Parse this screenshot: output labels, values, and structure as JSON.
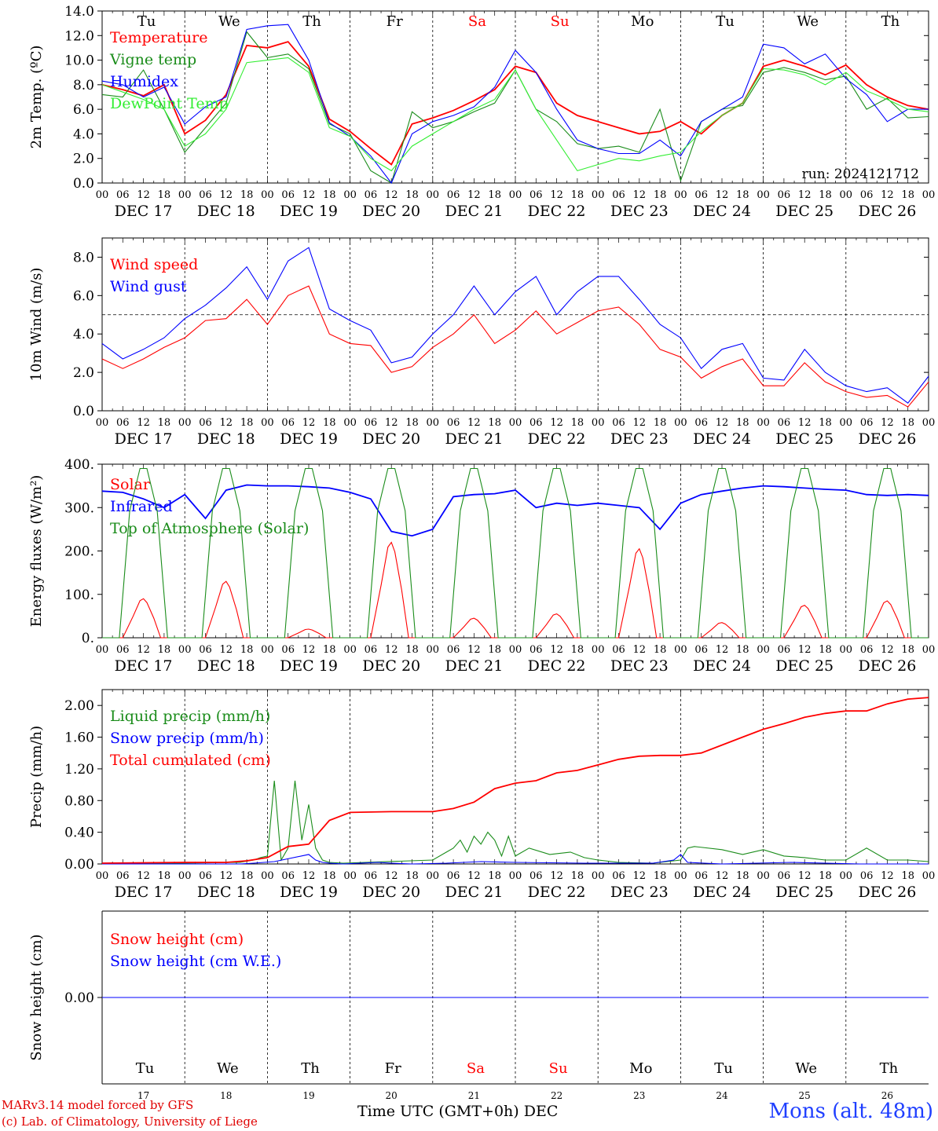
{
  "chart_data": [
    {
      "type": "line",
      "ylabel": "2m Temp. (ºC)",
      "ylim": [
        0,
        14
      ],
      "yticks": [
        "0.0",
        "2.0",
        "4.0",
        "6.0",
        "8.0",
        "10.0",
        "12.0",
        "14.0"
      ],
      "run_label": "run: 2024121712",
      "series": [
        {
          "name": "Temperature",
          "color": "#ff0000",
          "x": [
            0,
            6,
            12,
            18,
            24,
            30,
            36,
            42,
            48,
            54,
            60,
            66,
            72,
            78,
            84,
            90,
            96,
            102,
            108,
            114,
            120,
            126,
            132,
            138,
            144,
            150,
            156,
            162,
            168,
            174,
            180,
            186,
            192,
            198,
            204,
            210,
            216,
            222,
            228,
            234,
            240
          ],
          "values": [
            8.0,
            7.6,
            7.1,
            8.0,
            4.0,
            5.1,
            7.2,
            11.2,
            11.0,
            11.5,
            9.5,
            5.2,
            4.2,
            2.8,
            1.5,
            4.8,
            5.3,
            5.9,
            6.7,
            7.6,
            9.5,
            9.0,
            6.5,
            5.5,
            5.0,
            4.5,
            4.0,
            4.2,
            5.0,
            4.0,
            5.5,
            6.5,
            9.5,
            10.0,
            9.5,
            8.8,
            9.6,
            8.0,
            7.0,
            6.3,
            6.0
          ]
        },
        {
          "name": "Vigne temp",
          "color": "#1a8c1a",
          "x": [
            0,
            6,
            12,
            18,
            24,
            30,
            36,
            42,
            48,
            54,
            60,
            66,
            72,
            78,
            84,
            90,
            96,
            102,
            108,
            114,
            120,
            126,
            132,
            138,
            144,
            150,
            156,
            162,
            168,
            174,
            180,
            186,
            192,
            198,
            204,
            210,
            216,
            222,
            228,
            234,
            240
          ],
          "values": [
            7.2,
            7.0,
            9.2,
            6.0,
            2.5,
            4.5,
            6.5,
            12.3,
            10.2,
            10.5,
            9.3,
            4.8,
            4.0,
            1.0,
            0.0,
            5.8,
            4.5,
            5.0,
            5.8,
            6.5,
            9.2,
            6.0,
            5.0,
            3.2,
            2.8,
            3.0,
            2.5,
            6.0,
            0.2,
            5.0,
            6.0,
            6.3,
            9.0,
            9.4,
            9.0,
            8.4,
            8.7,
            6.0,
            6.9,
            5.3,
            5.4
          ]
        },
        {
          "name": "Humidex",
          "color": "#0000ff",
          "x": [
            0,
            6,
            12,
            18,
            24,
            30,
            36,
            42,
            48,
            54,
            60,
            66,
            72,
            78,
            84,
            90,
            96,
            102,
            108,
            114,
            120,
            126,
            132,
            138,
            144,
            150,
            156,
            162,
            168,
            174,
            180,
            186,
            192,
            198,
            204,
            210,
            216,
            222,
            228,
            234,
            240
          ],
          "values": [
            8.3,
            8.0,
            7.0,
            7.8,
            4.8,
            6.2,
            7.0,
            12.5,
            12.8,
            12.9,
            10.0,
            4.9,
            3.8,
            2.2,
            0.0,
            4.0,
            5.0,
            5.5,
            6.2,
            7.8,
            10.8,
            9.0,
            6.0,
            3.5,
            2.8,
            2.4,
            2.4,
            3.5,
            2.2,
            5.0,
            6.0,
            7.0,
            11.3,
            11.0,
            9.7,
            10.5,
            8.5,
            7.2,
            5.0,
            6.0,
            6.0
          ]
        },
        {
          "name": "DewPoint Temp",
          "color": "#33ee33",
          "x": [
            0,
            6,
            12,
            18,
            24,
            30,
            36,
            42,
            48,
            54,
            60,
            66,
            72,
            78,
            84,
            90,
            96,
            102,
            108,
            114,
            120,
            126,
            132,
            138,
            144,
            150,
            156,
            162,
            168,
            174,
            180,
            186,
            192,
            198,
            204,
            210,
            216,
            222,
            228,
            234,
            240
          ],
          "values": [
            8.0,
            7.4,
            6.8,
            6.0,
            3.0,
            4.0,
            6.0,
            9.8,
            10.0,
            10.2,
            9.0,
            4.5,
            3.8,
            2.0,
            1.0,
            3.0,
            4.0,
            5.0,
            6.0,
            6.8,
            9.2,
            6.0,
            3.5,
            1.0,
            1.5,
            2.0,
            1.8,
            2.2,
            2.5,
            4.2,
            5.5,
            6.5,
            9.3,
            9.2,
            8.8,
            8.0,
            9.0,
            7.5,
            6.8,
            6.0,
            5.8
          ]
        }
      ]
    },
    {
      "type": "line",
      "ylabel": "10m Wind (m/s)",
      "ylim": [
        0,
        9
      ],
      "yticks": [
        "0.0",
        "2.0",
        "4.0",
        "6.0",
        "8.0"
      ],
      "reference_line": 5,
      "series": [
        {
          "name": "Wind speed",
          "color": "#ff0000",
          "x": [
            0,
            6,
            12,
            18,
            24,
            30,
            36,
            42,
            48,
            54,
            60,
            66,
            72,
            78,
            84,
            90,
            96,
            102,
            108,
            114,
            120,
            126,
            132,
            138,
            144,
            150,
            156,
            162,
            168,
            174,
            180,
            186,
            192,
            198,
            204,
            210,
            216,
            222,
            228,
            234,
            240
          ],
          "values": [
            2.7,
            2.2,
            2.7,
            3.3,
            3.8,
            4.7,
            4.8,
            5.8,
            4.5,
            6.0,
            6.5,
            4.0,
            3.5,
            3.4,
            2.0,
            2.3,
            3.3,
            4.0,
            5.0,
            3.5,
            4.2,
            5.2,
            4.0,
            4.6,
            5.2,
            5.4,
            4.5,
            3.2,
            2.8,
            1.7,
            2.3,
            2.7,
            1.3,
            1.3,
            2.5,
            1.5,
            1.0,
            0.7,
            0.8,
            0.2,
            1.5
          ]
        },
        {
          "name": "Wind gust",
          "color": "#0000ff",
          "x": [
            0,
            6,
            12,
            18,
            24,
            30,
            36,
            42,
            48,
            54,
            60,
            66,
            72,
            78,
            84,
            90,
            96,
            102,
            108,
            114,
            120,
            126,
            132,
            138,
            144,
            150,
            156,
            162,
            168,
            174,
            180,
            186,
            192,
            198,
            204,
            210,
            216,
            222,
            228,
            234,
            240
          ],
          "values": [
            3.5,
            2.7,
            3.2,
            3.8,
            4.8,
            5.5,
            6.4,
            7.5,
            5.8,
            7.8,
            8.5,
            5.3,
            4.7,
            4.2,
            2.5,
            2.8,
            4.0,
            5.0,
            6.5,
            5.0,
            6.2,
            7.0,
            5.0,
            6.2,
            7.0,
            7.0,
            5.8,
            4.5,
            3.8,
            2.2,
            3.2,
            3.5,
            1.7,
            1.6,
            3.2,
            2.0,
            1.3,
            1.0,
            1.2,
            0.4,
            1.8
          ]
        }
      ]
    },
    {
      "type": "line",
      "ylabel": "Energy fluxes (W/m²)",
      "ylim": [
        0,
        400
      ],
      "yticks": [
        "0.",
        "100.",
        "200.",
        "300.",
        "400."
      ],
      "series": [
        {
          "name": "Solar",
          "color": "#ff0000",
          "peaks": [
            90,
            130,
            20,
            220,
            45,
            55,
            205,
            35,
            75,
            85
          ]
        },
        {
          "name": "Infrared",
          "color": "#0000ff",
          "x": [
            0,
            6,
            12,
            18,
            24,
            30,
            36,
            42,
            48,
            54,
            60,
            66,
            72,
            78,
            84,
            90,
            96,
            102,
            108,
            114,
            120,
            126,
            132,
            138,
            144,
            150,
            156,
            162,
            168,
            174,
            180,
            186,
            192,
            198,
            204,
            210,
            216,
            222,
            228,
            234,
            240
          ],
          "values": [
            338,
            335,
            320,
            300,
            330,
            275,
            340,
            352,
            350,
            350,
            348,
            345,
            335,
            320,
            245,
            235,
            250,
            325,
            330,
            332,
            340,
            300,
            310,
            305,
            310,
            305,
            300,
            250,
            310,
            330,
            338,
            345,
            350,
            348,
            345,
            342,
            340,
            330,
            328,
            330,
            328
          ]
        },
        {
          "name": "Top of Atmosphere (Solar)",
          "color": "#1a8c1a",
          "peak": 390
        }
      ]
    },
    {
      "type": "line",
      "ylabel": "Precip (mm/h)",
      "ylim": [
        0,
        2.2
      ],
      "yticks": [
        "0.00",
        "0.40",
        "0.80",
        "1.20",
        "1.60",
        "2.00"
      ],
      "series": [
        {
          "name": "Liquid precip (mm/h)",
          "color": "#1a8c1a",
          "x": [
            0,
            24,
            40,
            44,
            46,
            48,
            50,
            52,
            54,
            56,
            58,
            60,
            62,
            64,
            66,
            70,
            96,
            100,
            102,
            104,
            106,
            108,
            110,
            112,
            114,
            116,
            118,
            120,
            124,
            130,
            136,
            140,
            144,
            150,
            160,
            168,
            170,
            172,
            180,
            186,
            192,
            198,
            204,
            210,
            216,
            222,
            228,
            234,
            240
          ],
          "values": [
            0.01,
            0.01,
            0.02,
            0.05,
            0.08,
            0.1,
            1.05,
            0.05,
            0.2,
            1.05,
            0.3,
            0.75,
            0.2,
            0.05,
            0.02,
            0.01,
            0.05,
            0.15,
            0.2,
            0.3,
            0.15,
            0.35,
            0.25,
            0.4,
            0.3,
            0.1,
            0.35,
            0.1,
            0.2,
            0.12,
            0.15,
            0.08,
            0.05,
            0.02,
            0.01,
            0.05,
            0.2,
            0.22,
            0.18,
            0.12,
            0.18,
            0.1,
            0.08,
            0.05,
            0.05,
            0.2,
            0.05,
            0.05,
            0.03
          ]
        },
        {
          "name": "Snow precip (mm/h)",
          "color": "#0000ff",
          "x": [
            0,
            40,
            44,
            50,
            60,
            62,
            64,
            66,
            70,
            80,
            84,
            90,
            100,
            110,
            120,
            140,
            160,
            166,
            168,
            170,
            180,
            200,
            220,
            240
          ],
          "values": [
            0,
            0,
            0.01,
            0.03,
            0.12,
            0.05,
            0.02,
            0.01,
            0,
            0.02,
            0.01,
            0,
            0.01,
            0.03,
            0.02,
            0.01,
            0.01,
            0.05,
            0.12,
            0.02,
            0,
            0.02,
            0,
            0
          ]
        },
        {
          "name": "Total cumulated (cm)",
          "color": "#ff0000",
          "x": [
            0,
            24,
            36,
            42,
            48,
            54,
            60,
            66,
            72,
            84,
            96,
            102,
            108,
            114,
            120,
            126,
            132,
            138,
            144,
            150,
            156,
            162,
            168,
            174,
            180,
            186,
            192,
            198,
            204,
            210,
            216,
            222,
            228,
            234,
            240
          ],
          "values": [
            0.01,
            0.02,
            0.02,
            0.04,
            0.08,
            0.22,
            0.25,
            0.55,
            0.65,
            0.66,
            0.66,
            0.7,
            0.78,
            0.95,
            1.02,
            1.05,
            1.15,
            1.18,
            1.25,
            1.32,
            1.36,
            1.37,
            1.37,
            1.4,
            1.5,
            1.6,
            1.7,
            1.77,
            1.85,
            1.9,
            1.93,
            1.93,
            2.02,
            2.08,
            2.1
          ]
        }
      ]
    },
    {
      "type": "line",
      "ylabel": "Snow height (cm)",
      "yticks": [
        "0.00"
      ],
      "series": [
        {
          "name": "Snow height (cm)",
          "color": "#ff0000",
          "x": [
            0,
            240
          ],
          "values": [
            0,
            0
          ]
        },
        {
          "name": "Snow height (cm W.E.)",
          "color": "#0000ff",
          "x": [
            0,
            240
          ],
          "values": [
            0,
            0
          ]
        }
      ]
    }
  ],
  "x_axis": {
    "hour_ticks": [
      "00",
      "06",
      "12",
      "18"
    ],
    "end_tick": "00",
    "dates": [
      "DEC 17",
      "DEC 18",
      "DEC 19",
      "DEC 20",
      "DEC 21",
      "DEC 22",
      "DEC 23",
      "DEC 24",
      "DEC 25",
      "DEC 26"
    ],
    "weekdays": [
      "Tu",
      "We",
      "Th",
      "Fr",
      "Sa",
      "Su",
      "Mo",
      "Tu",
      "We",
      "Th"
    ],
    "weekend_flags": [
      false,
      false,
      false,
      false,
      true,
      true,
      false,
      false,
      false,
      false
    ],
    "day_numbers": [
      "17",
      "18",
      "19",
      "20",
      "21",
      "22",
      "23",
      "24",
      "25",
      "26"
    ],
    "title": "Time UTC (GMT+0h)",
    "month": "DEC"
  },
  "colors": {
    "weekday": "#000000",
    "weekend": "#ff0000",
    "station": "#1f3fff",
    "credit": "#e00000"
  },
  "footer": {
    "credit_line1": "MARv3.14 model forced by GFS",
    "credit_line2": "(c) Lab. of Climatology, University of Liege",
    "station": "Mons (alt. 48m)"
  }
}
